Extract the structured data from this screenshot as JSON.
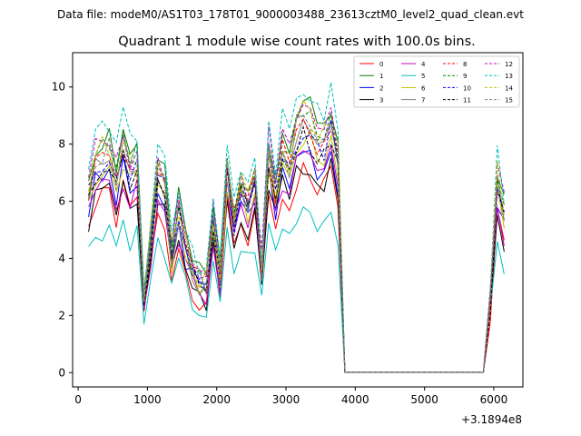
{
  "suptitle": "Data file: modeM0/AS1T03_178T01_9000003488_23613cztM0_level2_quad_clean.evt",
  "chart_data": {
    "type": "line",
    "title": "Quadrant 1 module wise count rates with 100.0s bins.",
    "xlabel": "",
    "ylabel": "",
    "x_offset_label": "+3.1894e8",
    "xlim": [
      -80,
      6420
    ],
    "ylim": [
      -0.5,
      11.2
    ],
    "xticks": [
      0,
      1000,
      2000,
      3000,
      4000,
      5000,
      6000
    ],
    "yticks": [
      0,
      2,
      4,
      6,
      8,
      10
    ],
    "x": [
      150,
      250,
      350,
      450,
      550,
      650,
      750,
      850,
      950,
      1050,
      1150,
      1250,
      1350,
      1450,
      1550,
      1650,
      1750,
      1850,
      1950,
      2050,
      2150,
      2250,
      2350,
      2450,
      2550,
      2650,
      2750,
      2850,
      2950,
      3050,
      3150,
      3250,
      3350,
      3450,
      3550,
      3650,
      3750,
      3850,
      3950,
      4050,
      4150,
      4250,
      4350,
      4450,
      4550,
      4650,
      4750,
      4850,
      4950,
      5050,
      5150,
      5250,
      5350,
      5450,
      5550,
      5650,
      5750,
      5850,
      5950,
      6050,
      6150
    ],
    "zero_region_x": [
      3850,
      5850
    ],
    "legend_location": "upper right",
    "series": [
      {
        "name": "0",
        "color": "#ff0000",
        "dash": false,
        "level": 0.82,
        "seed": 1
      },
      {
        "name": "1",
        "color": "#008000",
        "dash": false,
        "level": 1.1,
        "seed": 2
      },
      {
        "name": "2",
        "color": "#0000ff",
        "dash": false,
        "level": 0.92,
        "seed": 3
      },
      {
        "name": "3",
        "color": "#000000",
        "dash": false,
        "level": 0.86,
        "seed": 4
      },
      {
        "name": "4",
        "color": "#bf00bf",
        "dash": false,
        "level": 0.88,
        "seed": 5
      },
      {
        "name": "5",
        "color": "#00bfbf",
        "dash": false,
        "level": 0.68,
        "seed": 6
      },
      {
        "name": "6",
        "color": "#bfbf00",
        "dash": false,
        "level": 0.96,
        "seed": 7
      },
      {
        "name": "7",
        "color": "#808080",
        "dash": false,
        "level": 0.99,
        "seed": 8
      },
      {
        "name": "8",
        "color": "#ff0000",
        "dash": true,
        "level": 1.02,
        "seed": 9
      },
      {
        "name": "9",
        "color": "#008000",
        "dash": true,
        "level": 1.06,
        "seed": 10
      },
      {
        "name": "10",
        "color": "#0000ff",
        "dash": true,
        "level": 1.0,
        "seed": 11
      },
      {
        "name": "11",
        "color": "#000000",
        "dash": true,
        "level": 0.97,
        "seed": 12
      },
      {
        "name": "12",
        "color": "#bf00bf",
        "dash": true,
        "level": 1.09,
        "seed": 13
      },
      {
        "name": "13",
        "color": "#00bfbf",
        "dash": true,
        "level": 1.16,
        "seed": 14
      },
      {
        "name": "14",
        "color": "#bfbf00",
        "dash": true,
        "level": 1.06,
        "seed": 15
      },
      {
        "name": "15",
        "color": "#808080",
        "dash": true,
        "level": 1.03,
        "seed": 16
      }
    ],
    "base_profile": [
      6.2,
      7.2,
      7.4,
      7.6,
      6.6,
      7.8,
      6.9,
      7.2,
      2.6,
      4.6,
      6.6,
      6.4,
      4.0,
      5.5,
      4.4,
      3.6,
      3.2,
      3.0,
      5.2,
      3.4,
      7.0,
      5.2,
      6.4,
      5.8,
      6.6,
      3.6,
      7.6,
      6.2,
      7.6,
      7.0,
      8.2,
      8.6,
      8.4,
      7.8,
      7.8,
      8.6,
      7.2,
      0.0,
      0.0,
      0.0,
      0.0,
      0.0,
      0.0,
      0.0,
      0.0,
      0.0,
      0.0,
      0.0,
      0.0,
      0.0,
      0.0,
      0.0,
      0.0,
      0.0,
      0.0,
      0.0,
      0.0,
      0.0,
      2.6,
      6.6,
      5.4
    ]
  }
}
